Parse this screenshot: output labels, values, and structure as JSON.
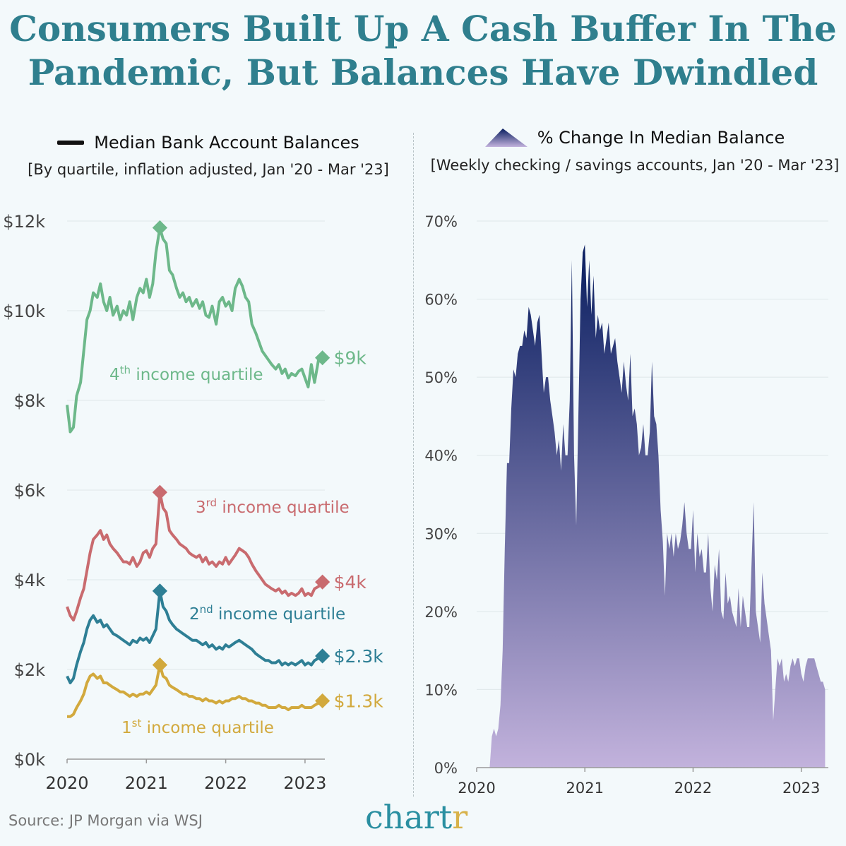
{
  "title_line1": "Consumers Built Up A Cash Buffer In The",
  "title_line2": "Pandemic, But Balances Have Dwindled",
  "source": "Source: JP Morgan via WSJ",
  "brand": "chart",
  "brand_accent": "r",
  "chart_data": [
    {
      "type": "line",
      "title": "Median Bank Account Balances",
      "subtitle": "[By quartile, inflation adjusted, Jan '20 - Mar '23]",
      "legend": "Median Bank Account Balances",
      "x_ticks": [
        "2020",
        "2021",
        "2022",
        "2023"
      ],
      "y_ticks": [
        "$0k",
        "$2k",
        "$4k",
        "$6k",
        "$8k",
        "$10k",
        "$12k"
      ],
      "ylim": [
        0,
        12000
      ],
      "colors": {
        "q4": "#6db88a",
        "q3": "#c96b6f",
        "q2": "#2e7f95",
        "q1": "#d2a93d"
      },
      "series": [
        {
          "key": "q4",
          "label_num": "4",
          "label_sup": "th",
          "label_rest": " income quartile",
          "end_label": "$9k",
          "x": [
            2020.0,
            2020.04,
            2020.08,
            2020.12,
            2020.17,
            2020.21,
            2020.25,
            2020.29,
            2020.33,
            2020.38,
            2020.42,
            2020.46,
            2020.5,
            2020.54,
            2020.58,
            2020.63,
            2020.67,
            2020.71,
            2020.75,
            2020.79,
            2020.83,
            2020.88,
            2020.92,
            2020.96,
            2021.0,
            2021.04,
            2021.08,
            2021.12,
            2021.17,
            2021.21,
            2021.25,
            2021.29,
            2021.33,
            2021.38,
            2021.42,
            2021.46,
            2021.5,
            2021.54,
            2021.58,
            2021.63,
            2021.67,
            2021.71,
            2021.75,
            2021.79,
            2021.83,
            2021.88,
            2021.92,
            2021.96,
            2022.0,
            2022.04,
            2022.08,
            2022.12,
            2022.17,
            2022.21,
            2022.25,
            2022.29,
            2022.33,
            2022.38,
            2022.42,
            2022.46,
            2022.5,
            2022.54,
            2022.58,
            2022.63,
            2022.67,
            2022.71,
            2022.75,
            2022.79,
            2022.83,
            2022.88,
            2022.92,
            2022.96,
            2023.0,
            2023.04,
            2023.08,
            2023.12,
            2023.17,
            2023.22
          ],
          "values": [
            7900,
            7300,
            7400,
            8100,
            8400,
            9100,
            9800,
            10000,
            10400,
            10300,
            10600,
            10200,
            10000,
            10300,
            9900,
            10100,
            9800,
            10000,
            9900,
            10200,
            9800,
            10300,
            10500,
            10400,
            10700,
            10300,
            10600,
            11300,
            11850,
            11600,
            11500,
            10900,
            10800,
            10500,
            10300,
            10400,
            10200,
            10300,
            10100,
            10250,
            10050,
            10200,
            9900,
            9850,
            10100,
            9700,
            10200,
            10300,
            10100,
            10200,
            10000,
            10500,
            10700,
            10550,
            10300,
            10200,
            9700,
            9500,
            9300,
            9100,
            9000,
            8900,
            8800,
            8700,
            8800,
            8600,
            8700,
            8500,
            8600,
            8550,
            8650,
            8700,
            8500,
            8300,
            8800,
            8400,
            8900,
            8950
          ]
        },
        {
          "key": "q3",
          "label_num": "3",
          "label_sup": "rd",
          "label_rest": " income quartile",
          "end_label": "$4k",
          "x": [
            2020.0,
            2020.04,
            2020.08,
            2020.12,
            2020.17,
            2020.21,
            2020.25,
            2020.29,
            2020.33,
            2020.38,
            2020.42,
            2020.46,
            2020.5,
            2020.54,
            2020.58,
            2020.63,
            2020.67,
            2020.71,
            2020.75,
            2020.79,
            2020.83,
            2020.88,
            2020.92,
            2020.96,
            2021.0,
            2021.04,
            2021.08,
            2021.12,
            2021.17,
            2021.21,
            2021.25,
            2021.29,
            2021.33,
            2021.38,
            2021.42,
            2021.46,
            2021.5,
            2021.54,
            2021.58,
            2021.63,
            2021.67,
            2021.71,
            2021.75,
            2021.79,
            2021.83,
            2021.88,
            2021.92,
            2021.96,
            2022.0,
            2022.04,
            2022.08,
            2022.12,
            2022.17,
            2022.21,
            2022.25,
            2022.29,
            2022.33,
            2022.38,
            2022.42,
            2022.46,
            2022.5,
            2022.54,
            2022.58,
            2022.63,
            2022.67,
            2022.71,
            2022.75,
            2022.79,
            2022.83,
            2022.88,
            2022.92,
            2022.96,
            2023.0,
            2023.04,
            2023.08,
            2023.12,
            2023.17,
            2023.22
          ],
          "values": [
            3400,
            3200,
            3100,
            3300,
            3600,
            3800,
            4200,
            4600,
            4900,
            5000,
            5100,
            4900,
            5000,
            4800,
            4700,
            4600,
            4500,
            4400,
            4400,
            4350,
            4500,
            4300,
            4400,
            4600,
            4650,
            4500,
            4700,
            4800,
            5950,
            5600,
            5500,
            5100,
            5000,
            4900,
            4800,
            4750,
            4700,
            4600,
            4550,
            4500,
            4550,
            4400,
            4500,
            4350,
            4400,
            4300,
            4400,
            4350,
            4500,
            4350,
            4450,
            4550,
            4700,
            4650,
            4600,
            4500,
            4350,
            4200,
            4100,
            4000,
            3900,
            3850,
            3800,
            3750,
            3800,
            3700,
            3750,
            3650,
            3700,
            3650,
            3700,
            3800,
            3650,
            3700,
            3650,
            3800,
            3850,
            3950
          ]
        },
        {
          "key": "q2",
          "label_num": "2",
          "label_sup": "nd",
          "label_rest": " income quartile",
          "end_label": "$2.3k",
          "x": [
            2020.0,
            2020.04,
            2020.08,
            2020.12,
            2020.17,
            2020.21,
            2020.25,
            2020.29,
            2020.33,
            2020.38,
            2020.42,
            2020.46,
            2020.5,
            2020.54,
            2020.58,
            2020.63,
            2020.67,
            2020.71,
            2020.75,
            2020.79,
            2020.83,
            2020.88,
            2020.92,
            2020.96,
            2021.0,
            2021.04,
            2021.08,
            2021.12,
            2021.17,
            2021.21,
            2021.25,
            2021.29,
            2021.33,
            2021.38,
            2021.42,
            2021.46,
            2021.5,
            2021.54,
            2021.58,
            2021.63,
            2021.67,
            2021.71,
            2021.75,
            2021.79,
            2021.83,
            2021.88,
            2021.92,
            2021.96,
            2022.0,
            2022.04,
            2022.08,
            2022.12,
            2022.17,
            2022.21,
            2022.25,
            2022.29,
            2022.33,
            2022.38,
            2022.42,
            2022.46,
            2022.5,
            2022.54,
            2022.58,
            2022.63,
            2022.67,
            2022.71,
            2022.75,
            2022.79,
            2022.83,
            2022.88,
            2022.92,
            2022.96,
            2023.0,
            2023.04,
            2023.08,
            2023.12,
            2023.17,
            2023.22
          ],
          "values": [
            1850,
            1700,
            1800,
            2100,
            2400,
            2600,
            2900,
            3100,
            3200,
            3050,
            3100,
            2950,
            3000,
            2900,
            2800,
            2750,
            2700,
            2650,
            2600,
            2550,
            2650,
            2600,
            2700,
            2650,
            2700,
            2600,
            2750,
            2900,
            3750,
            3400,
            3300,
            3100,
            3000,
            2900,
            2850,
            2800,
            2750,
            2700,
            2650,
            2650,
            2600,
            2550,
            2600,
            2500,
            2550,
            2450,
            2500,
            2450,
            2550,
            2500,
            2550,
            2600,
            2650,
            2600,
            2550,
            2500,
            2450,
            2350,
            2300,
            2250,
            2200,
            2200,
            2150,
            2150,
            2200,
            2100,
            2150,
            2100,
            2150,
            2100,
            2150,
            2200,
            2100,
            2150,
            2100,
            2200,
            2250,
            2300
          ]
        },
        {
          "key": "q1",
          "label_num": "1",
          "label_sup": "st",
          "label_rest": " income quartile",
          "end_label": "$1.3k",
          "x": [
            2020.0,
            2020.04,
            2020.08,
            2020.12,
            2020.17,
            2020.21,
            2020.25,
            2020.29,
            2020.33,
            2020.38,
            2020.42,
            2020.46,
            2020.5,
            2020.54,
            2020.58,
            2020.63,
            2020.67,
            2020.71,
            2020.75,
            2020.79,
            2020.83,
            2020.88,
            2020.92,
            2020.96,
            2021.0,
            2021.04,
            2021.08,
            2021.12,
            2021.17,
            2021.21,
            2021.25,
            2021.29,
            2021.33,
            2021.38,
            2021.42,
            2021.46,
            2021.5,
            2021.54,
            2021.58,
            2021.63,
            2021.67,
            2021.71,
            2021.75,
            2021.79,
            2021.83,
            2021.88,
            2021.92,
            2021.96,
            2022.0,
            2022.04,
            2022.08,
            2022.12,
            2022.17,
            2022.21,
            2022.25,
            2022.29,
            2022.33,
            2022.38,
            2022.42,
            2022.46,
            2022.5,
            2022.54,
            2022.58,
            2022.63,
            2022.67,
            2022.71,
            2022.75,
            2022.79,
            2022.83,
            2022.88,
            2022.92,
            2022.96,
            2023.0,
            2023.04,
            2023.08,
            2023.12,
            2023.17,
            2023.22
          ],
          "values": [
            950,
            950,
            1000,
            1150,
            1300,
            1450,
            1700,
            1850,
            1900,
            1800,
            1850,
            1700,
            1700,
            1650,
            1600,
            1550,
            1500,
            1500,
            1450,
            1400,
            1450,
            1400,
            1450,
            1450,
            1500,
            1450,
            1550,
            1650,
            2100,
            1850,
            1800,
            1650,
            1600,
            1550,
            1500,
            1450,
            1450,
            1400,
            1400,
            1350,
            1350,
            1300,
            1350,
            1300,
            1300,
            1250,
            1300,
            1250,
            1300,
            1300,
            1350,
            1350,
            1400,
            1350,
            1350,
            1300,
            1300,
            1250,
            1250,
            1200,
            1200,
            1150,
            1150,
            1150,
            1200,
            1150,
            1150,
            1100,
            1150,
            1150,
            1150,
            1200,
            1150,
            1150,
            1150,
            1200,
            1250,
            1300
          ]
        }
      ]
    },
    {
      "type": "area",
      "title": "% Change In Median Balance",
      "subtitle": "[Weekly checking / savings accounts, Jan '20 - Mar '23]",
      "legend": "% Change In Median Balance",
      "x_ticks": [
        "2020",
        "2021",
        "2022",
        "2023"
      ],
      "y_ticks": [
        "0%",
        "10%",
        "20%",
        "30%",
        "40%",
        "50%",
        "60%",
        "70%"
      ],
      "ylim": [
        0,
        70
      ],
      "colors": {
        "top": "#081d5f",
        "bottom": "#c2b2dc"
      },
      "x": [
        2020.0,
        2020.12,
        2020.14,
        2020.16,
        2020.18,
        2020.2,
        2020.22,
        2020.24,
        2020.26,
        2020.28,
        2020.3,
        2020.32,
        2020.34,
        2020.36,
        2020.38,
        2020.4,
        2020.42,
        2020.44,
        2020.46,
        2020.48,
        2020.5,
        2020.52,
        2020.54,
        2020.56,
        2020.58,
        2020.6,
        2020.62,
        2020.64,
        2020.66,
        2020.68,
        2020.7,
        2020.72,
        2020.74,
        2020.76,
        2020.78,
        2020.8,
        2020.82,
        2020.84,
        2020.86,
        2020.88,
        2020.9,
        2020.92,
        2020.94,
        2020.96,
        2020.98,
        2021.0,
        2021.02,
        2021.04,
        2021.06,
        2021.08,
        2021.1,
        2021.12,
        2021.14,
        2021.16,
        2021.18,
        2021.2,
        2021.22,
        2021.24,
        2021.26,
        2021.28,
        2021.3,
        2021.32,
        2021.34,
        2021.36,
        2021.38,
        2021.4,
        2021.42,
        2021.44,
        2021.46,
        2021.48,
        2021.5,
        2021.52,
        2021.54,
        2021.56,
        2021.58,
        2021.6,
        2021.62,
        2021.64,
        2021.66,
        2021.68,
        2021.7,
        2021.72,
        2021.74,
        2021.76,
        2021.78,
        2021.8,
        2021.82,
        2021.84,
        2021.86,
        2021.88,
        2021.9,
        2021.92,
        2021.94,
        2021.96,
        2021.98,
        2022.0,
        2022.02,
        2022.04,
        2022.06,
        2022.08,
        2022.1,
        2022.12,
        2022.14,
        2022.16,
        2022.18,
        2022.2,
        2022.22,
        2022.24,
        2022.26,
        2022.28,
        2022.3,
        2022.32,
        2022.34,
        2022.36,
        2022.38,
        2022.4,
        2022.42,
        2022.44,
        2022.46,
        2022.48,
        2022.5,
        2022.52,
        2022.54,
        2022.56,
        2022.58,
        2022.6,
        2022.62,
        2022.64,
        2022.66,
        2022.68,
        2022.7,
        2022.72,
        2022.74,
        2022.76,
        2022.78,
        2022.8,
        2022.82,
        2022.84,
        2022.86,
        2022.88,
        2022.9,
        2022.92,
        2022.94,
        2022.96,
        2022.98,
        2023.0,
        2023.02,
        2023.04,
        2023.06,
        2023.08,
        2023.1,
        2023.12,
        2023.14,
        2023.16,
        2023.18,
        2023.2,
        2023.22
      ],
      "values": [
        0,
        0,
        4,
        5,
        4,
        5,
        8,
        15,
        28,
        39,
        39,
        46,
        51,
        50,
        53,
        54,
        54,
        56,
        55,
        59,
        58,
        56,
        54,
        57,
        58,
        53,
        48,
        50,
        50,
        47,
        45,
        43,
        40,
        42,
        38,
        44,
        40,
        40,
        47,
        65,
        40,
        31,
        45,
        60,
        66,
        67,
        59,
        65,
        58,
        63,
        55,
        58,
        56,
        57,
        53,
        55,
        57,
        53,
        54,
        55,
        52,
        50,
        48,
        52,
        49,
        47,
        53,
        45,
        46,
        44,
        40,
        41,
        44,
        40,
        40,
        43,
        52,
        45,
        44,
        40,
        33,
        29,
        22,
        30,
        28,
        30,
        27,
        30,
        28,
        29,
        31,
        34,
        30,
        28,
        28,
        33,
        25,
        30,
        27,
        28,
        25,
        25,
        30,
        23,
        20,
        26,
        24,
        28,
        20,
        19,
        25,
        21,
        22,
        20,
        19,
        18,
        23,
        18,
        22,
        20,
        18,
        18,
        26,
        34,
        20,
        18,
        16,
        25,
        21,
        19,
        17,
        15,
        6,
        10,
        14,
        13,
        14,
        11,
        12,
        11,
        13,
        14,
        13,
        14,
        14,
        12,
        11,
        13,
        14,
        14,
        14,
        14,
        13,
        12,
        11,
        11,
        10
      ]
    }
  ]
}
